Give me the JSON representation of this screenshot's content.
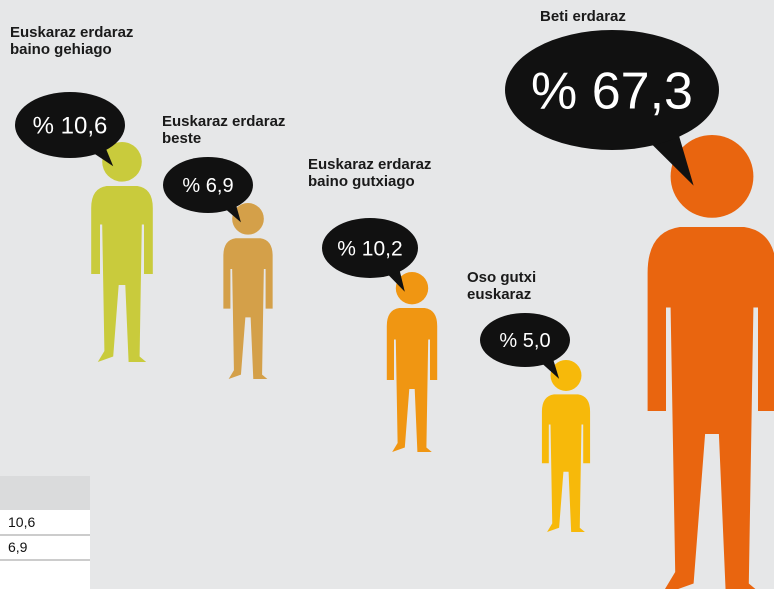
{
  "chart_data": {
    "type": "pictogram",
    "categories": [
      "Euskaraz erdaraz baino gehiago",
      "Euskaraz erdaraz beste",
      "Euskaraz erdaraz baino gutxiago",
      "Oso gutxi euskaraz",
      "Beti erdaraz"
    ],
    "values": [
      10.6,
      6.9,
      10.2,
      5.0,
      67.3
    ],
    "value_labels": [
      "% 10,6",
      "% 6,9",
      "% 10,2",
      "% 5,0",
      "% 67,3"
    ],
    "colors": [
      "#c9cb3c",
      "#d4a049",
      "#f09612",
      "#f7b90a",
      "#e9650f"
    ]
  },
  "table": {
    "rows": [
      [
        "10,6"
      ],
      [
        "6,9"
      ]
    ]
  }
}
